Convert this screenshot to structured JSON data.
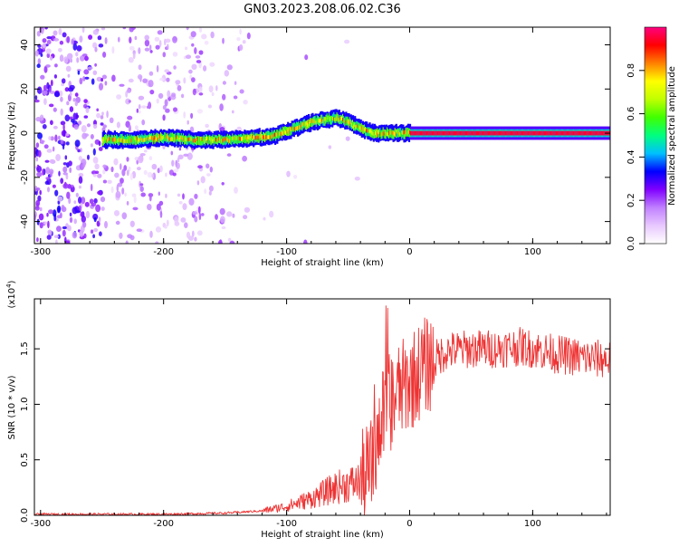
{
  "title": "GN03.2023.208.06.02.C36",
  "chart_data": [
    {
      "type": "heatmap",
      "xlabel": "Height of straight line (km)",
      "ylabel": "Frequency (Hz)",
      "xlim": [
        -305,
        163
      ],
      "ylim": [
        -50,
        48
      ],
      "xticks": [
        -300,
        -200,
        -100,
        0,
        100
      ],
      "yticks": [
        -40,
        -20,
        0,
        20,
        40
      ],
      "colorbar": {
        "label": "Normalized spectral amplitude",
        "range": [
          0.0,
          1.0
        ],
        "ticks": [
          "0.0",
          "0.2",
          "0.4",
          "0.6",
          "0.8"
        ],
        "colors": [
          "#ffffff",
          "#e8c8ff",
          "#c080ff",
          "#8000ff",
          "#0000ff",
          "#00c0ff",
          "#00ff80",
          "#40ff00",
          "#c0ff00",
          "#ffff00",
          "#ff8000",
          "#ff0000",
          "#ff0080"
        ]
      },
      "ridge": {
        "x": [
          -250,
          -225,
          -200,
          -175,
          -150,
          -125,
          -110,
          -100,
          -90,
          -80,
          -70,
          -60,
          -50,
          -40,
          -30,
          -20,
          -10,
          0,
          50,
          100,
          163
        ],
        "frequency_hz": [
          -3,
          -3,
          -2,
          -3,
          -3,
          -2,
          -1,
          1,
          3,
          5,
          6,
          7,
          5,
          2,
          0,
          0,
          0,
          0,
          0,
          0,
          0
        ]
      }
    },
    {
      "type": "line",
      "xlabel": "Height of straight line (km)",
      "ylabel": "SNR (10 * v/v)",
      "yscale_note": "(x10",
      "yscale_exp": "4",
      "yscale_close": ")",
      "xlim": [
        -305,
        163
      ],
      "ylim": [
        0.0,
        1.95
      ],
      "xticks": [
        -300,
        -200,
        -100,
        0,
        100
      ],
      "yticks": [
        "0.0",
        "0.5",
        "1.0",
        "1.5"
      ],
      "color": "#ee3333",
      "envelope": {
        "x": [
          -305,
          -250,
          -200,
          -150,
          -120,
          -100,
          -80,
          -70,
          -60,
          -50,
          -40,
          -30,
          -25,
          -20,
          -10,
          0,
          10,
          20,
          30,
          50,
          70,
          90,
          100,
          120,
          140,
          163
        ],
        "y": [
          0.01,
          0.01,
          0.01,
          0.02,
          0.04,
          0.08,
          0.15,
          0.2,
          0.25,
          0.28,
          0.3,
          0.45,
          0.75,
          0.95,
          1.1,
          1.2,
          1.32,
          1.4,
          1.48,
          1.5,
          1.5,
          1.52,
          1.5,
          1.45,
          1.42,
          1.4
        ]
      }
    }
  ]
}
